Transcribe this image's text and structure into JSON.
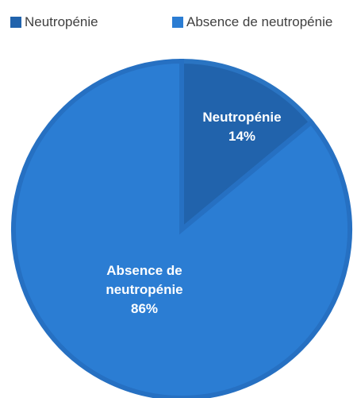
{
  "chart_data": {
    "type": "pie",
    "categories": [
      "Neutropénie",
      "Absence de neutropénie"
    ],
    "values": [
      14,
      86
    ],
    "value_labels": [
      "14%",
      "86%"
    ],
    "colors": [
      "#2163ac",
      "#2b7dd3"
    ],
    "legend": "top"
  }
}
